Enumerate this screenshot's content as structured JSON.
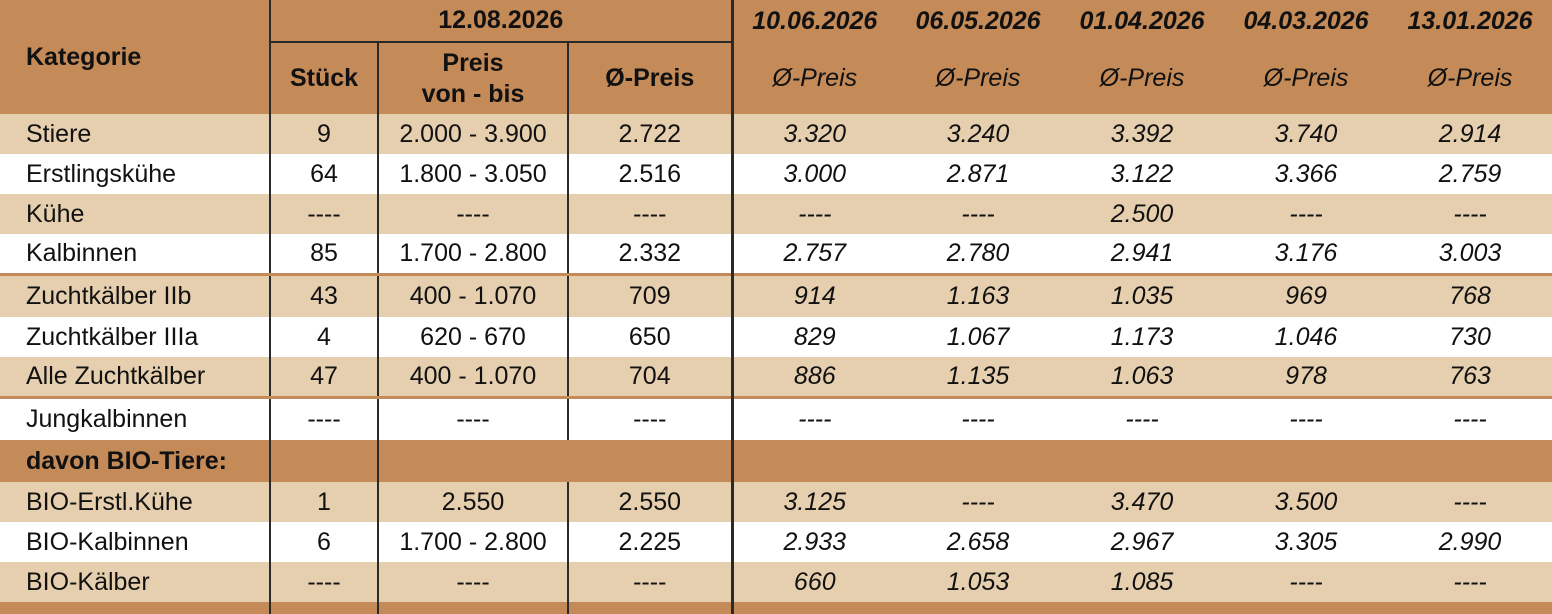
{
  "header": {
    "kategorie": "Kategorie",
    "current_date": "12.08.2026",
    "stueck": "Stück",
    "preis_line1": "Preis",
    "preis_line2": "von - bis",
    "avg_preis": "Ø-Preis",
    "history_dates": [
      "10.06.2026",
      "06.05.2026",
      "01.04.2026",
      "04.03.2026",
      "13.01.2026"
    ],
    "history_sub": "Ø-Preis"
  },
  "rows": [
    {
      "name": "Stiere",
      "stueck": "9",
      "range": "2.000 - 3.900",
      "avg": "2.722",
      "hist": [
        "3.320",
        "3.240",
        "3.392",
        "3.740",
        "2.914"
      ]
    },
    {
      "name": "Erstlingskühe",
      "stueck": "64",
      "range": "1.800 - 3.050",
      "avg": "2.516",
      "hist": [
        "3.000",
        "2.871",
        "3.122",
        "3.366",
        "2.759"
      ]
    },
    {
      "name": "Kühe",
      "stueck": "----",
      "range": "----",
      "avg": "----",
      "hist": [
        "----",
        "----",
        "2.500",
        "----",
        "----"
      ]
    },
    {
      "name": "Kalbinnen",
      "stueck": "85",
      "range": "1.700 - 2.800",
      "avg": "2.332",
      "hist": [
        "2.757",
        "2.780",
        "2.941",
        "3.176",
        "3.003"
      ]
    },
    {
      "name": "Zuchtkälber IIb",
      "stueck": "43",
      "range": "400 - 1.070",
      "avg": "709",
      "hist": [
        "914",
        "1.163",
        "1.035",
        "969",
        "768"
      ]
    },
    {
      "name": "Zuchtkälber IIIa",
      "stueck": "4",
      "range": "620 - 670",
      "avg": "650",
      "hist": [
        "829",
        "1.067",
        "1.173",
        "1.046",
        "730"
      ]
    },
    {
      "name": "Alle Zuchtkälber",
      "stueck": "47",
      "range": "400 - 1.070",
      "avg": "704",
      "hist": [
        "886",
        "1.135",
        "1.063",
        "978",
        "763"
      ]
    },
    {
      "name": "Jungkalbinnen",
      "stueck": "----",
      "range": "----",
      "avg": "----",
      "hist": [
        "----",
        "----",
        "----",
        "----",
        "----"
      ]
    }
  ],
  "bio_header": "davon BIO-Tiere:",
  "bio_rows": [
    {
      "name": "BIO-Erstl.Kühe",
      "stueck": "1",
      "range": "2.550",
      "avg": "2.550",
      "hist": [
        "3.125",
        "----",
        "3.470",
        "3.500",
        "----"
      ]
    },
    {
      "name": "BIO-Kalbinnen",
      "stueck": "6",
      "range": "1.700 - 2.800",
      "avg": "2.225",
      "hist": [
        "2.933",
        "2.658",
        "2.967",
        "3.305",
        "2.990"
      ]
    },
    {
      "name": "BIO-Kälber",
      "stueck": "----",
      "range": "----",
      "avg": "----",
      "hist": [
        "660",
        "1.053",
        "1.085",
        "----",
        "----"
      ]
    }
  ],
  "colors": {
    "header_bg": "#c48a58",
    "shade_bg": "#e6cfae",
    "white_bg": "#ffffff"
  }
}
